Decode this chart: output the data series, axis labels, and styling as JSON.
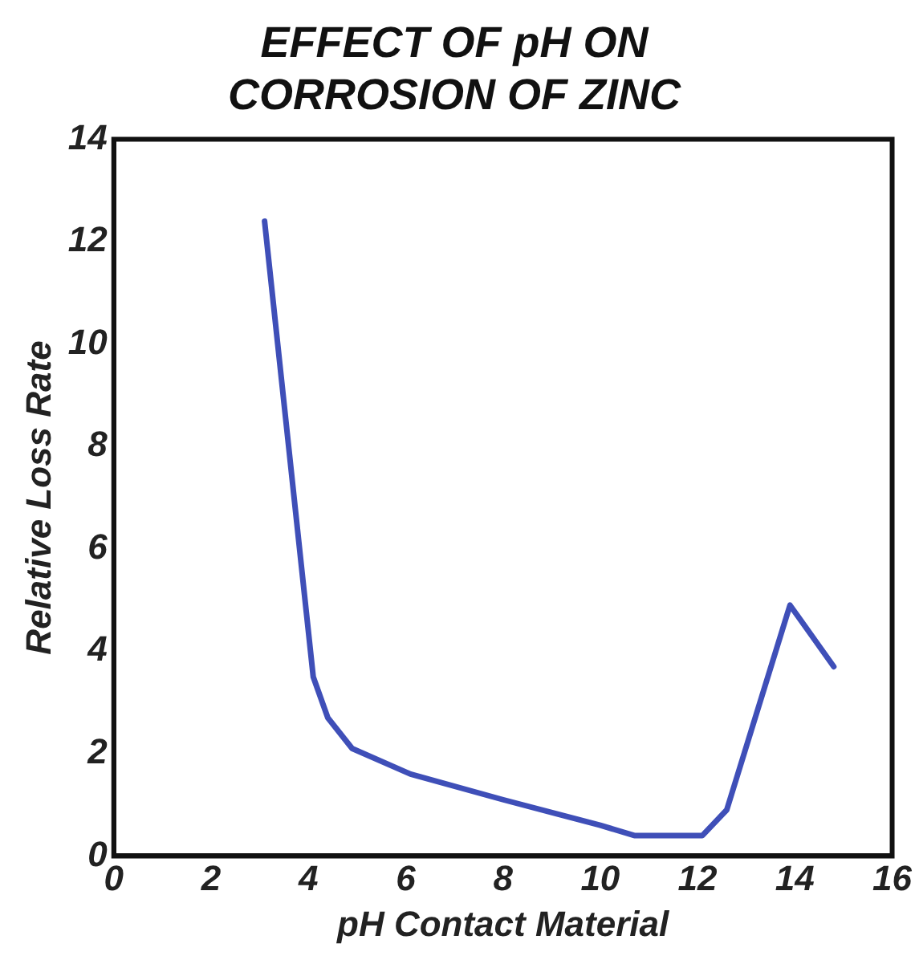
{
  "chart_data": {
    "type": "line",
    "title": "EFFECT OF pH ON\nCORROSION OF ZINC",
    "xlabel": "pH Contact Material",
    "ylabel": "Relative Loss Rate",
    "x": [
      3.1,
      4.1,
      4.4,
      4.9,
      6.1,
      8,
      10,
      10.7,
      12.1,
      12.6,
      13.9,
      14.8
    ],
    "series": [
      {
        "color": "#3f4fb8",
        "values": [
          12.4,
          3.5,
          2.7,
          2.1,
          1.6,
          1.1,
          0.6,
          0.4,
          0.4,
          0.9,
          4.9,
          3.7
        ]
      }
    ],
    "xlim": [
      0,
      16
    ],
    "xticks": [
      0,
      2,
      4,
      6,
      8,
      10,
      12,
      14,
      16
    ],
    "ylim": [
      0,
      14
    ],
    "yticks": [
      0,
      2,
      4,
      6,
      8,
      10,
      12,
      14
    ],
    "grid": false,
    "legend": false,
    "marker": "none",
    "line_style": "solid"
  }
}
